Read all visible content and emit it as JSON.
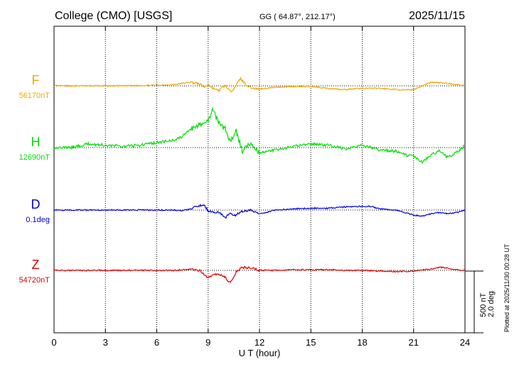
{
  "header": {
    "station": "College (CMO)  [USGS]",
    "coords": "GG ( 64.87°, 212.17°)",
    "date": "2025/11/15"
  },
  "side_note": "Plotted at 2025/11/30 00:28 UT",
  "scale": {
    "field": "500 nT",
    "angle": "2.0 deg"
  },
  "chart_data": {
    "type": "line",
    "xlabel": "U T (hour)",
    "xlim": [
      0,
      24
    ],
    "xticks": [
      "0",
      "3",
      "6",
      "9",
      "12",
      "15",
      "18",
      "21",
      "24"
    ],
    "grid": "vertical dotted every 3 hours",
    "series": [
      {
        "name": "F",
        "baseline": "56170nT",
        "color": "#f0a800",
        "x": [
          0,
          2,
          4,
          6,
          7,
          7.5,
          8,
          8.5,
          8.8,
          9,
          9.3,
          9.6,
          10,
          10.3,
          10.6,
          10.9,
          11.2,
          11.6,
          12,
          13,
          14,
          15,
          16,
          17,
          18,
          19,
          20,
          20.5,
          21,
          21.5,
          22,
          22.5,
          23,
          23.5,
          24
        ],
        "values": [
          0,
          0,
          0,
          5,
          10,
          20,
          30,
          15,
          -10,
          10,
          -20,
          -40,
          5,
          -50,
          0,
          60,
          10,
          -20,
          -25,
          -10,
          -5,
          -5,
          -20,
          -30,
          -20,
          -20,
          -30,
          -35,
          -30,
          0,
          30,
          25,
          20,
          10,
          0
        ]
      },
      {
        "name": "H",
        "baseline": "12690nT",
        "color": "#00e000",
        "x": [
          0,
          1,
          2,
          3,
          4,
          5,
          6,
          7,
          7.5,
          8,
          8.5,
          9,
          9.3,
          9.6,
          10,
          10.3,
          10.6,
          11,
          11.5,
          12,
          13,
          14,
          15,
          16,
          17,
          18,
          19,
          20,
          20.5,
          21,
          21.5,
          22,
          22.5,
          23,
          23.5,
          24
        ],
        "values": [
          0,
          0,
          30,
          20,
          10,
          20,
          40,
          60,
          90,
          150,
          180,
          220,
          310,
          200,
          150,
          40,
          150,
          -30,
          40,
          -40,
          -20,
          10,
          30,
          20,
          -10,
          20,
          -20,
          -30,
          -60,
          -70,
          -120,
          -60,
          -30,
          -80,
          -40,
          20
        ]
      },
      {
        "name": "D",
        "baseline": "0.1deg",
        "color": "#0000e0",
        "x": [
          0,
          2,
          4,
          6,
          7,
          7.5,
          8,
          8.5,
          8.8,
          9,
          9.3,
          9.6,
          10,
          10.3,
          10.6,
          11,
          11.5,
          12,
          13,
          14,
          15,
          16,
          17,
          18,
          18.5,
          19,
          20,
          20.5,
          21,
          21.5,
          22,
          22.5,
          23,
          23.5,
          24
        ],
        "values": [
          0,
          0,
          0,
          0,
          0,
          -5,
          10,
          35,
          40,
          -10,
          -20,
          -15,
          -60,
          -30,
          -40,
          -10,
          0,
          -30,
          0,
          10,
          15,
          15,
          25,
          30,
          30,
          10,
          0,
          -20,
          -40,
          -50,
          -30,
          -20,
          -30,
          -20,
          0
        ]
      },
      {
        "name": "Z",
        "baseline": "54720nT",
        "color": "#e00000",
        "x": [
          0,
          2,
          4,
          6,
          7,
          7.5,
          8,
          8.5,
          8.8,
          9,
          9.3,
          9.6,
          10,
          10.3,
          10.6,
          11,
          11.5,
          12,
          13,
          14,
          15,
          16,
          17,
          18,
          19,
          20,
          21,
          22,
          22.5,
          23,
          23.5,
          24
        ],
        "values": [
          0,
          0,
          0,
          0,
          0,
          5,
          10,
          0,
          -40,
          -60,
          -40,
          -30,
          -60,
          -100,
          -20,
          25,
          20,
          0,
          0,
          5,
          5,
          5,
          0,
          0,
          -5,
          -10,
          -5,
          10,
          25,
          20,
          5,
          0
        ]
      }
    ]
  }
}
